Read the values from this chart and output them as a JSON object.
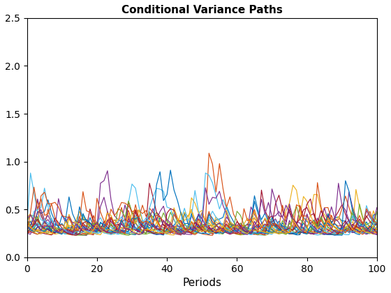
{
  "title": "Conditional Variance Paths",
  "xlabel": "Periods",
  "xlim": [
    0,
    100
  ],
  "ylim": [
    0,
    2.5
  ],
  "yticks": [
    0,
    0.5,
    1.0,
    1.5,
    2.0,
    2.5
  ],
  "xticks": [
    0,
    20,
    40,
    60,
    80,
    100
  ],
  "n_paths": 25,
  "n_periods": 101,
  "omega": 0.1,
  "alpha": 0.15,
  "beta": 0.55,
  "line_width": 0.85,
  "matlab_colors": [
    "#0072BD",
    "#D95319",
    "#EDB120",
    "#7E2F8E",
    "#77AC30",
    "#4DBEEE",
    "#A2142F"
  ],
  "figsize": [
    5.6,
    4.2
  ],
  "dpi": 100,
  "title_fontsize": 11,
  "xlabel_fontsize": 11
}
